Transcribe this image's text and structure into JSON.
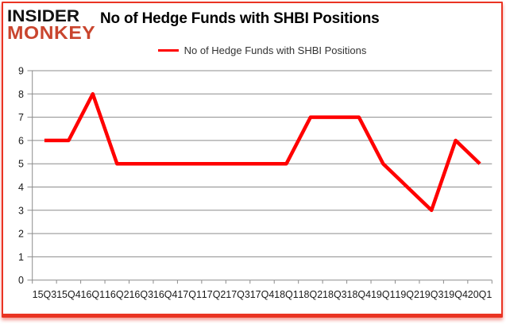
{
  "logo": {
    "line1": "INSIDER",
    "line2": "MONKEY"
  },
  "header": {
    "title": "No of Hedge Funds with SHBI Positions"
  },
  "legend": {
    "label": "No of Hedge Funds with SHBI Positions"
  },
  "colors": {
    "line_red": "#ff0000",
    "logo_red": "#c9452e",
    "frame_red": "#ea3423",
    "gridline_gray": "#8c8c8c",
    "axis_text": "#1a1a1a",
    "title_text": "#000000",
    "legend_text": "#333333"
  },
  "chart_data": {
    "type": "line",
    "title": "No of Hedge Funds with SHBI Positions",
    "categories": [
      "15Q3",
      "15Q4",
      "16Q1",
      "16Q2",
      "16Q3",
      "16Q4",
      "17Q1",
      "17Q2",
      "17Q3",
      "17Q4",
      "18Q1",
      "18Q2",
      "18Q3",
      "18Q4",
      "19Q1",
      "19Q2",
      "19Q3",
      "19Q4",
      "20Q1"
    ],
    "series": [
      {
        "name": "No of Hedge Funds with SHBI Positions",
        "values": [
          6,
          6,
          8,
          5,
          5,
          5,
          5,
          5,
          5,
          5,
          5,
          7,
          7,
          7,
          5,
          4,
          3,
          6,
          5
        ]
      }
    ],
    "xlabel": "",
    "ylabel": "",
    "ylim": [
      0,
      9
    ],
    "ytick_step": 1,
    "grid": true,
    "legend_position": "top-center"
  }
}
